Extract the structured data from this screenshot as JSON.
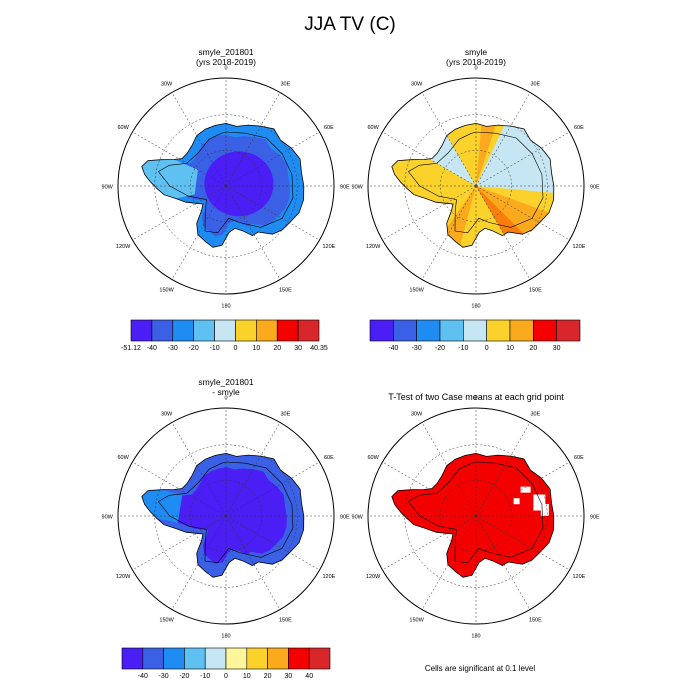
{
  "main_title": "JJA TV (C)",
  "footnote": "Cells are significant at 0.1 level",
  "colors": {
    "blue_dark": "#4a1ef5",
    "blue_mid": "#3a60e6",
    "blue": "#1e8cf2",
    "blue_light": "#5ec1f2",
    "cyan_pale": "#c6e6f3",
    "yellow": "#fad22b",
    "orange_light": "#fbaa1e",
    "orange": "#fb7e0d",
    "red": "#f40000",
    "red_dark": "#d8262b",
    "pale_yellow": "#fff59a"
  },
  "chart_data": [
    {
      "id": "panel-1",
      "type": "polar-map",
      "title": [
        "smyle_201801",
        "(yrs 2018-2019)"
      ],
      "lon_labels": [
        "0",
        "30E",
        "60E",
        "90E",
        "120E",
        "150E",
        "180",
        "150W",
        "120W",
        "90W",
        "60W",
        "30W"
      ],
      "colorbar": {
        "labels": [
          "-51.12",
          "-40",
          "-30",
          "-20",
          "-10",
          "0",
          "10",
          "20",
          "30",
          "40.35"
        ],
        "colors": [
          "blue_dark",
          "blue_mid",
          "blue",
          "blue_light",
          "cyan_pale",
          "yellow",
          "orange_light",
          "red",
          "red_dark"
        ]
      },
      "field": "mostly -50 to -30 over East Antarctic plateau, -20 to -10 near coasts and peninsula"
    },
    {
      "id": "panel-2",
      "type": "polar-map",
      "title": [
        "smyle",
        "(yrs 2018-2019)"
      ],
      "lon_labels": [
        "0",
        "30E",
        "60E",
        "90E",
        "120E",
        "150E",
        "180",
        "150W",
        "120W",
        "90W",
        "60W",
        "30W"
      ],
      "colorbar": {
        "labels": [
          "-40",
          "-30",
          "-20",
          "-10",
          "0",
          "10",
          "20",
          "30"
        ],
        "colors": [
          "blue_dark",
          "blue_mid",
          "blue",
          "blue_light",
          "cyan_pale",
          "yellow",
          "orange_light",
          "red",
          "red_dark"
        ]
      },
      "field": "0 to 10 over most of continent, -10 to 0 in wedge 30E-90E and over Weddell region, 10 to 20 wedges near 90E-150E and 150W-180"
    },
    {
      "id": "panel-3",
      "type": "polar-map",
      "title": [
        "smyle_201801",
        "- smyle"
      ],
      "lon_labels": [
        "0",
        "30E",
        "60E",
        "90E",
        "120E",
        "150E",
        "180",
        "150W",
        "120W",
        "90W",
        "60W",
        "30W"
      ],
      "colorbar": {
        "labels": [
          "-40",
          "-30",
          "-20",
          "-10",
          "0",
          "10",
          "20",
          "30",
          "40"
        ],
        "colors": [
          "blue_dark",
          "blue_mid",
          "blue",
          "blue_light",
          "cyan_pale",
          "pale_yellow",
          "yellow",
          "orange_light",
          "red",
          "red_dark"
        ]
      },
      "field": "-40 to -30 over interior, -30 to -20 toward coasts"
    },
    {
      "id": "panel-4",
      "type": "polar-map",
      "title": [
        "T-Test of two Case means at each grid point"
      ],
      "lon_labels": [
        "0",
        "30E",
        "60E",
        "90E",
        "120E",
        "150E",
        "180",
        "150W",
        "120W",
        "90W",
        "60W",
        "30W"
      ],
      "field": "significant (red) nearly everywhere over Antarctica, small non-significant patches near 60E-90E"
    }
  ]
}
